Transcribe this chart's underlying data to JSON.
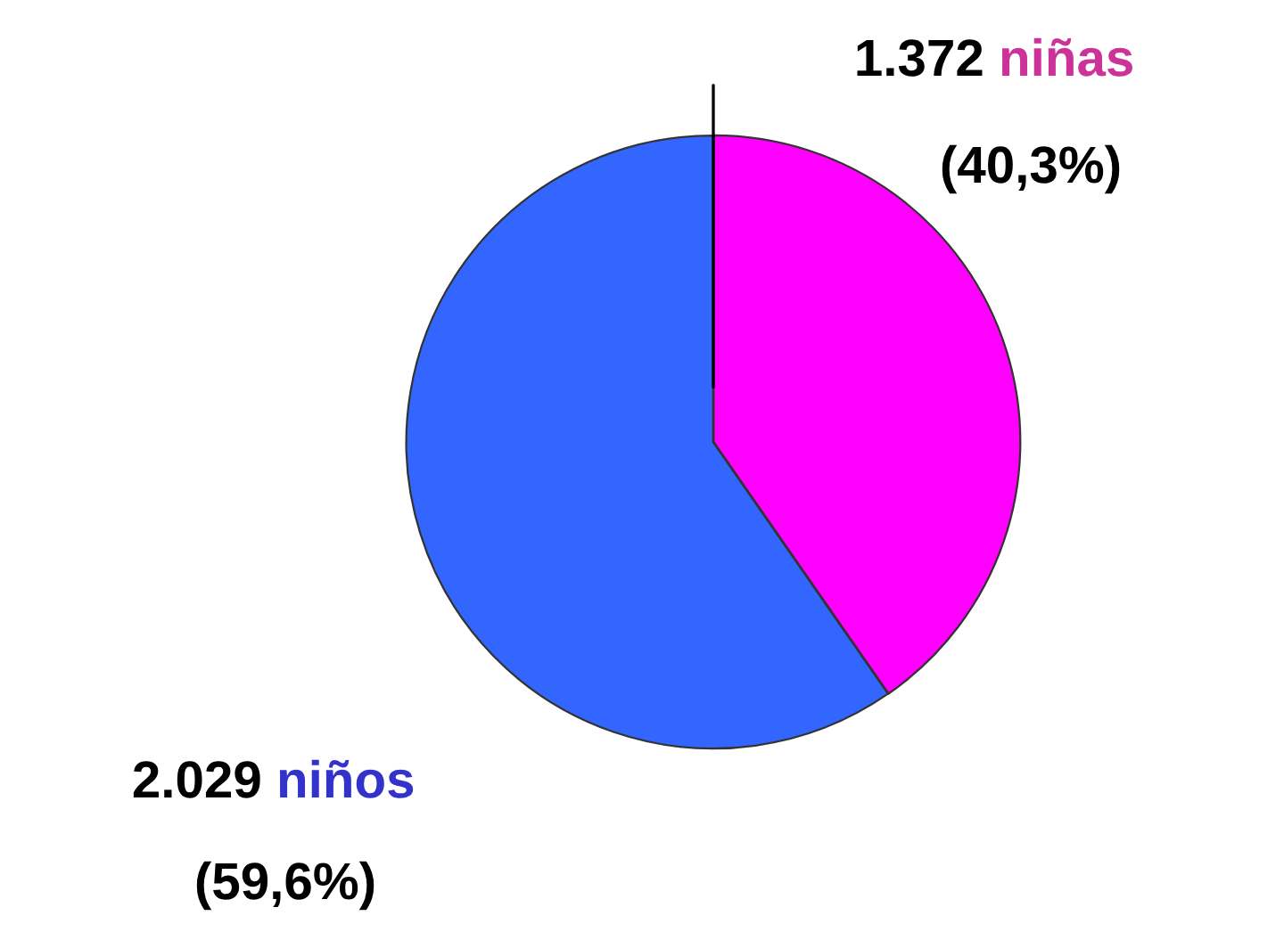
{
  "chart_data": {
    "type": "pie",
    "categories": [
      "niñas",
      "niños"
    ],
    "values": [
      1372,
      2029
    ],
    "colors": [
      "#ff00ff",
      "#3366ff"
    ],
    "value_labels": [
      "1.372",
      "2.029"
    ],
    "annotations": [
      "(40,3%)",
      "(59,6%)"
    ]
  }
}
